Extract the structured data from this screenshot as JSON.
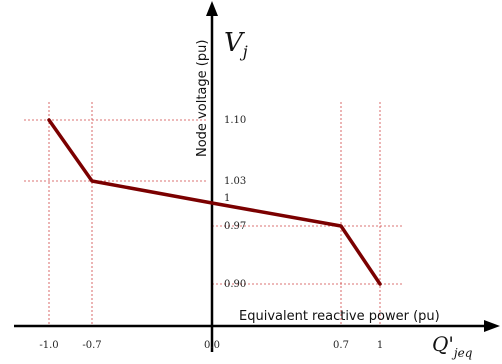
{
  "chart_data": {
    "type": "line",
    "xlabel": "Equivalent reactive power (pu)",
    "ylabel": "Node voltage (pu)",
    "x_symbol": "Q'",
    "x_symbol_sub": "jeq",
    "y_symbol": "V",
    "y_symbol_sub": "j",
    "x_ticks": [
      "-1.0",
      "-0.7",
      "0.0",
      "0.7",
      "1"
    ],
    "y_ticks": [
      "1.10",
      "1.03",
      "1",
      "0.97",
      "0.90"
    ],
    "series": [
      {
        "points": [
          [
            -1.0,
            1.1
          ],
          [
            -0.7,
            1.03
          ],
          [
            0.0,
            1.0
          ],
          [
            0.7,
            0.97
          ],
          [
            1.0,
            0.9
          ]
        ]
      }
    ],
    "grid": "dashed reference lines at breakpoints",
    "colors": {
      "curve": "#7b0000",
      "grid": "#d04545",
      "axis": "#000000"
    }
  }
}
